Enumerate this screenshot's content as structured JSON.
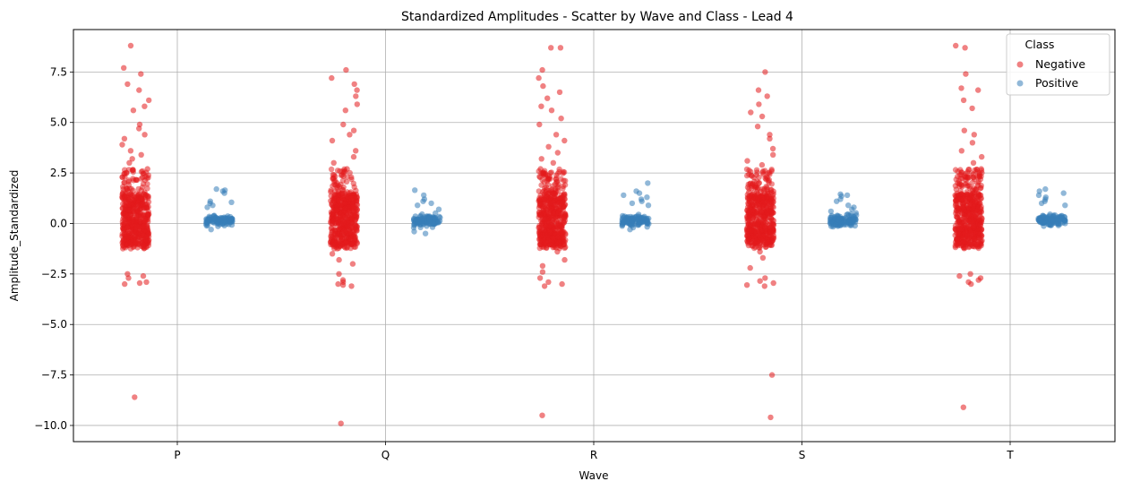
{
  "chart_data": {
    "type": "scatter",
    "title": "Standardized Amplitudes - Scatter by Wave and Class - Lead 4",
    "xlabel": "Wave",
    "ylabel": "Amplitude_Standardized",
    "categories": [
      "P",
      "Q",
      "R",
      "S",
      "T"
    ],
    "ylim": [
      -10.8,
      9.6
    ],
    "yticks": [
      -10.0,
      -7.5,
      -5.0,
      -2.5,
      0.0,
      2.5,
      5.0,
      7.5
    ],
    "ytick_labels": [
      "−10.0",
      "−7.5",
      "−5.0",
      "−2.5",
      "0.0",
      "2.5",
      "5.0",
      "7.5"
    ],
    "grid": true,
    "legend": {
      "title": "Class",
      "position": "top-right"
    },
    "series": [
      {
        "name": "Negative",
        "color": "#e41a1c",
        "offset": -0.2,
        "points": {
          "P": [
            8.8,
            7.7,
            7.4,
            6.9,
            6.6,
            6.1,
            5.8,
            5.6,
            4.9,
            4.7,
            4.4,
            4.2,
            3.9,
            3.6,
            3.4,
            3.2,
            3.0,
            2.7,
            2.5,
            2.3,
            -2.5,
            -2.6,
            -2.7,
            -2.9,
            -2.95,
            -3.0,
            -8.6
          ],
          "Q": [
            7.6,
            7.2,
            6.9,
            6.6,
            6.3,
            5.9,
            5.6,
            4.9,
            4.6,
            4.4,
            4.1,
            3.6,
            3.3,
            3.0,
            2.7,
            2.4,
            -1.5,
            -1.8,
            -2.0,
            -2.5,
            -2.8,
            -2.9,
            -3.0,
            -3.05,
            -3.1,
            -9.9
          ],
          "R": [
            8.7,
            8.7,
            7.6,
            7.2,
            6.8,
            6.5,
            6.2,
            5.8,
            5.6,
            5.2,
            4.9,
            4.4,
            4.1,
            3.8,
            3.5,
            3.2,
            3.0,
            2.7,
            -1.4,
            -1.8,
            -2.1,
            -2.4,
            -2.7,
            -2.9,
            -3.0,
            -3.1,
            -9.5
          ],
          "S": [
            7.5,
            6.6,
            6.3,
            5.9,
            5.5,
            5.3,
            4.8,
            4.4,
            4.2,
            3.7,
            3.4,
            3.1,
            2.9,
            2.6,
            -1.4,
            -1.7,
            -2.2,
            -2.7,
            -2.85,
            -2.95,
            -3.05,
            -3.1,
            -7.5,
            -9.6
          ],
          "T": [
            8.8,
            8.7,
            7.4,
            6.7,
            6.6,
            6.1,
            5.7,
            4.6,
            4.4,
            4.0,
            3.6,
            3.3,
            3.0,
            2.7,
            -2.5,
            -2.6,
            -2.7,
            -2.8,
            -2.9,
            -3.0,
            -9.1
          ]
        }
      },
      {
        "name": "Positive",
        "color": "#377eb8",
        "offset": 0.2,
        "points": {
          "P": [
            1.7,
            1.65,
            1.6,
            1.5,
            1.1,
            1.05,
            1.0,
            0.9,
            0.8,
            -0.3
          ],
          "Q": [
            1.65,
            1.4,
            1.2,
            1.1,
            1.0,
            0.9,
            0.7,
            -0.4,
            -0.5
          ],
          "R": [
            2.0,
            1.6,
            1.5,
            1.4,
            1.3,
            1.2,
            1.1,
            1.0,
            0.9,
            -0.2,
            -0.3
          ],
          "S": [
            1.45,
            1.4,
            1.35,
            1.2,
            1.1,
            0.9,
            0.8,
            0.7,
            0.6
          ],
          "T": [
            1.7,
            1.6,
            1.5,
            1.4,
            1.3,
            1.2,
            1.1,
            1.0,
            0.9
          ]
        }
      }
    ]
  }
}
